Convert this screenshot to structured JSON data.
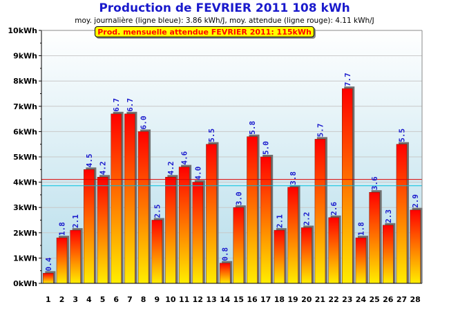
{
  "title": "Production de FEVRIER 2011  108 kWh",
  "subtitle": "moy. journalière (ligne bleue): 3.86 kWh/J,   moy. attendue (ligne rouge): 4.11 kWh/J",
  "expected_label": "Prod. mensuelle attendue FEVRIER 2011: 115kWh",
  "colors": {
    "title": "#1a1acc",
    "bar_top": "#ff0000",
    "bar_bottom": "#ffee00",
    "value_label": "#1a1acc",
    "avg_line": "#00c0e0",
    "expected_line": "#dd0000",
    "plot_bg_top": "#ffffff",
    "plot_bg_bottom": "#b4dcea"
  },
  "chart_data": {
    "type": "bar",
    "title": "Production de FEVRIER 2011  108 kWh",
    "xlabel": "",
    "ylabel": "",
    "ylim": [
      0,
      10
    ],
    "y_ticks": [
      "0kWh",
      "1kWh",
      "2kWh",
      "3kWh",
      "4kWh",
      "5kWh",
      "6kWh",
      "7kWh",
      "8kWh",
      "9kWh",
      "10kWh"
    ],
    "categories": [
      "1",
      "2",
      "3",
      "4",
      "5",
      "6",
      "7",
      "8",
      "9",
      "10",
      "11",
      "12",
      "13",
      "14",
      "15",
      "16",
      "17",
      "18",
      "19",
      "20",
      "21",
      "22",
      "23",
      "24",
      "25",
      "26",
      "27",
      "28"
    ],
    "values": [
      0.4,
      1.8,
      2.1,
      4.5,
      4.2,
      6.7,
      6.7,
      6.0,
      2.5,
      4.2,
      4.6,
      4.0,
      5.5,
      0.8,
      3.0,
      5.8,
      5.0,
      2.1,
      3.8,
      2.2,
      5.7,
      2.6,
      7.7,
      1.8,
      3.6,
      2.3,
      5.5,
      2.9
    ],
    "labels": [
      "0.4",
      "1.8",
      "2.1",
      "4.5",
      "4.2",
      "6.7",
      "6.7",
      "6.0",
      "2.5",
      "4.2",
      "4.6",
      "4.0",
      "5.5",
      "0.8",
      "3.0",
      "5.8",
      "5.0",
      "2.1",
      "3.8",
      "2.2",
      "5.7",
      "2.6",
      "7.7",
      "1.8",
      "3.6",
      "2.3",
      "5.5",
      "2.9"
    ],
    "reference_lines": [
      {
        "value": 3.86
      },
      {
        "value": 4.11
      }
    ],
    "grid": true
  }
}
